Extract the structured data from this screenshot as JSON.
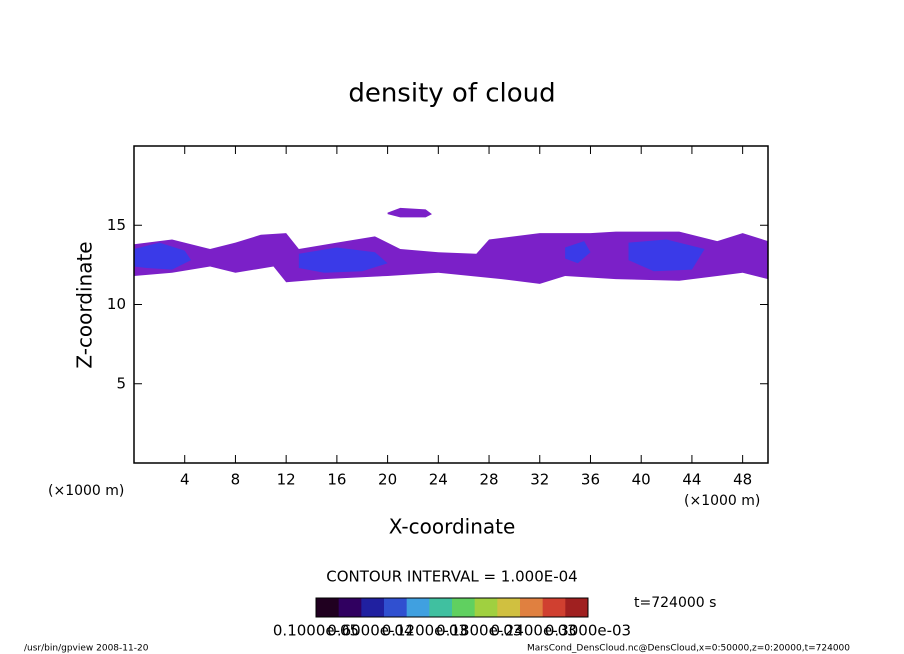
{
  "chart_data": {
    "type": "contour",
    "title": "density of cloud",
    "x_label": "X-coordinate",
    "y_label": "Z-coordinate",
    "x_unit_left": "(×1000 m)",
    "x_unit_right": "(×1000 m)",
    "xlim": [
      0,
      50
    ],
    "ylim": [
      0,
      20
    ],
    "xticks": [
      4,
      8,
      12,
      16,
      20,
      24,
      28,
      32,
      36,
      40,
      44,
      48
    ],
    "yticks": [
      5,
      10,
      15
    ],
    "regions": [
      {
        "color": "#7b20c8",
        "x": [
          0,
          3,
          6,
          8,
          10,
          12,
          13,
          16,
          19,
          21,
          24,
          27,
          28,
          32,
          36,
          38,
          43,
          46,
          48,
          50,
          50,
          48,
          46,
          43,
          38,
          34,
          32,
          29,
          24,
          20,
          15,
          12,
          11,
          8,
          6,
          3,
          0
        ],
        "z": [
          13.8,
          14.1,
          13.5,
          13.9,
          14.4,
          14.5,
          13.5,
          13.9,
          14.3,
          13.5,
          13.3,
          13.2,
          14.1,
          14.5,
          14.5,
          14.6,
          14.6,
          14.0,
          14.5,
          14.0,
          11.6,
          12.0,
          11.8,
          11.5,
          11.6,
          11.8,
          11.3,
          11.6,
          12.0,
          11.8,
          11.6,
          11.4,
          12.4,
          12.0,
          12.4,
          12.0,
          11.8
        ]
      },
      {
        "color": "#7b20c8",
        "x": [
          20,
          21,
          23,
          23.5,
          23,
          21,
          20
        ],
        "z": [
          15.8,
          16.1,
          16.0,
          15.7,
          15.5,
          15.5,
          15.7
        ]
      },
      {
        "color": "#3a3ae8",
        "x": [
          0,
          2,
          4,
          4.5,
          3,
          1,
          0
        ],
        "z": [
          13.5,
          13.9,
          13.4,
          12.8,
          12.2,
          12.3,
          12.4
        ]
      },
      {
        "color": "#3a3ae8",
        "x": [
          13,
          16,
          19,
          20,
          18,
          15,
          13
        ],
        "z": [
          13.2,
          13.6,
          13.3,
          12.6,
          12.1,
          12.0,
          12.3
        ]
      },
      {
        "color": "#3a3ae8",
        "x": [
          34,
          35.5,
          36,
          35,
          34
        ],
        "z": [
          13.6,
          14.0,
          13.3,
          12.6,
          12.9
        ]
      },
      {
        "color": "#3a3ae8",
        "x": [
          39,
          42,
          45,
          44,
          41,
          39
        ],
        "z": [
          13.9,
          14.1,
          13.5,
          12.2,
          12.1,
          12.8
        ]
      }
    ],
    "contour_interval": "CONTOUR INTERVAL = 1.000E-04",
    "colorbar_colors": [
      "#200020",
      "#300060",
      "#2020a0",
      "#3050d0",
      "#40a0e0",
      "#40c0a0",
      "#60d060",
      "#a0d040",
      "#d0c040",
      "#e08040",
      "#d04030",
      "#a02020"
    ],
    "colorbar_labels": [
      "0.1000e-05",
      "0.6000e-04",
      "0.1200e-03",
      "0.1800e-03",
      "0.2400e-03",
      "0.3000e-03"
    ],
    "time_label": "t=724000 s",
    "footer_left": "/usr/bin/gpview   2008-11-20",
    "footer_right": "MarsCond_DensCloud.nc@DensCloud,x=0:50000,z=0:20000,t=724000"
  }
}
